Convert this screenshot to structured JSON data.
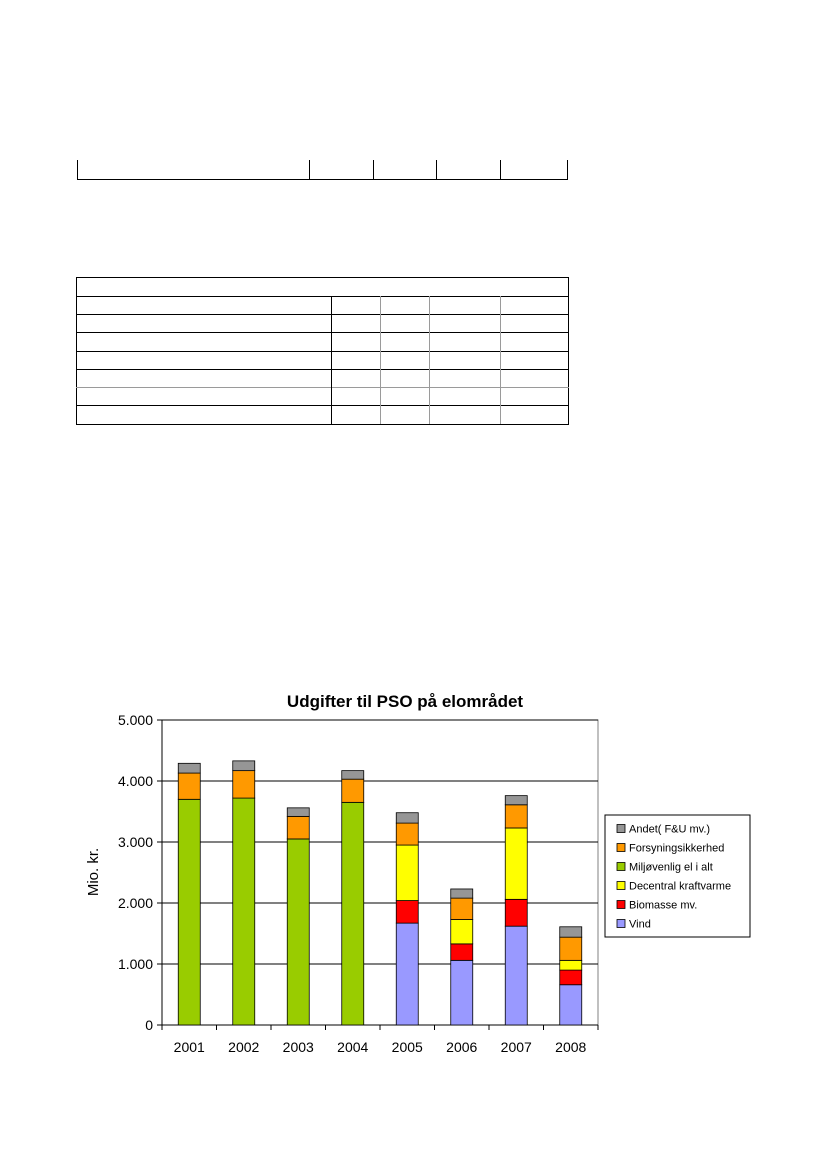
{
  "chart_data": {
    "type": "bar",
    "stacked": true,
    "title": "Udgifter til PSO på elområdet",
    "ylabel": "Mio. kr.",
    "xlabel": "",
    "ylim": [
      0,
      5000
    ],
    "yticks": [
      "0",
      "1.000",
      "2.000",
      "3.000",
      "4.000",
      "5.000"
    ],
    "ytick_values": [
      0,
      1000,
      2000,
      3000,
      4000,
      5000
    ],
    "grid": true,
    "legend_position": "right",
    "categories": [
      "2001",
      "2002",
      "2003",
      "2004",
      "2005",
      "2006",
      "2007",
      "2008"
    ],
    "series": [
      {
        "name": "Vind",
        "color": "#9999ff",
        "values": [
          0,
          0,
          0,
          0,
          1670,
          1060,
          1620,
          660
        ]
      },
      {
        "name": "Biomasse mv.",
        "color": "#ff0000",
        "values": [
          0,
          0,
          0,
          0,
          370,
          270,
          440,
          240
        ]
      },
      {
        "name": "Decentral kraftvarme",
        "color": "#ffff00",
        "values": [
          0,
          0,
          0,
          0,
          910,
          400,
          1170,
          160
        ]
      },
      {
        "name": "Miljøvenlig el i alt",
        "color": "#99cc00",
        "values": [
          3700,
          3720,
          3050,
          3650,
          0,
          0,
          0,
          0
        ]
      },
      {
        "name": "Forsyningsikkerhed",
        "color": "#ff9900",
        "values": [
          430,
          450,
          370,
          380,
          360,
          350,
          380,
          380
        ]
      },
      {
        "name": "Andet( F&U mv.)",
        "color": "#969696",
        "values": [
          160,
          160,
          140,
          140,
          170,
          150,
          150,
          170
        ]
      }
    ]
  }
}
